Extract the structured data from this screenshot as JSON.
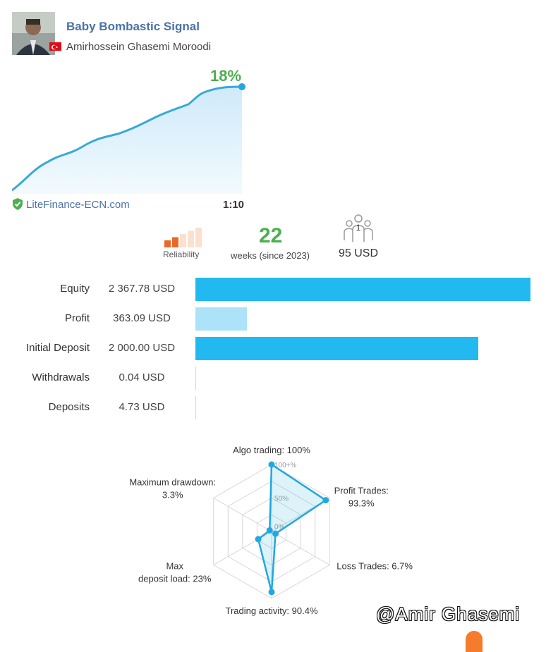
{
  "header": {
    "title": "Baby Bombastic Signal",
    "author": "Amirhossein Ghasemi Moroodi"
  },
  "growth": {
    "value": "18%",
    "broker": "LiteFinance-ECN.com",
    "leverage": "1:10"
  },
  "stats": {
    "reliability_label": "Reliability",
    "reliability_level": 2,
    "reliability_max": 5,
    "weeks": "22",
    "weeks_label": "weeks (since 2023)",
    "subscribers": "1",
    "price": "95 USD"
  },
  "metrics": [
    {
      "label": "Equity",
      "value": "2 367.78 USD",
      "amount": 2367.78,
      "color": "#22b9f0"
    },
    {
      "label": "Profit",
      "value": "363.09 USD",
      "amount": 363.09,
      "color": "#ade3f9"
    },
    {
      "label": "Initial Deposit",
      "value": "2 000.00 USD",
      "amount": 2000.0,
      "color": "#22b9f0"
    },
    {
      "label": "Withdrawals",
      "value": "0.04 USD",
      "amount": 0.04,
      "color": "#ade3f9"
    },
    {
      "label": "Deposits",
      "value": "4.73 USD",
      "amount": 4.73,
      "color": "#ade3f9"
    }
  ],
  "radar": {
    "axes": [
      {
        "label": "Algo trading: 100%",
        "value": 100
      },
      {
        "label": "Profit Trades: 93.3%",
        "value": 93.3
      },
      {
        "label": "Loss Trades: 6.7%",
        "value": 6.7
      },
      {
        "label": "Trading activity: 90.4%",
        "value": 90.4
      },
      {
        "label": "Max deposit load: 23%",
        "value": 23
      },
      {
        "label": "Maximum drawdown: 3.3%",
        "value": 3.3
      }
    ],
    "rings": [
      "0%",
      "50%",
      "100+%"
    ],
    "color": "#22a7e0"
  },
  "watermark": "@Amir Ghasemi"
}
